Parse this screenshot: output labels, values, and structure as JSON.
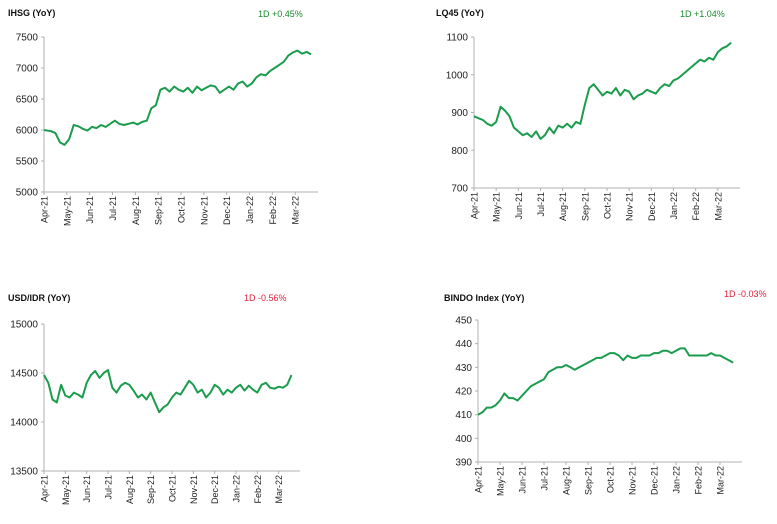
{
  "colors": {
    "line": "#1a9c4c",
    "axis": "#b0b0b0",
    "up": "#1a8a2e",
    "down": "#e0203a"
  },
  "chart_data": [
    {
      "id": "ihsg",
      "type": "line",
      "title": "IHSG (YoY)",
      "change_label": "1D +0.45%",
      "change_direction": "up",
      "ylim": [
        5000,
        7500
      ],
      "yticks": [
        "5000",
        "5500",
        "6000",
        "6500",
        "7000",
        "7500"
      ],
      "xticks": [
        "Apr-21",
        "May-21",
        "Jun-21",
        "Jul-21",
        "Aug-21",
        "Sep-21",
        "Oct-21",
        "Nov-21",
        "Dec-21",
        "Jan-22",
        "Feb-22",
        "Mar-22"
      ],
      "grid": false,
      "legend": "none",
      "series": [
        {
          "x": [
            0,
            0.3,
            0.5,
            0.7,
            0.9,
            1.1,
            1.3,
            1.5,
            1.7,
            1.9,
            2.1,
            2.3,
            2.5,
            2.7,
            2.9,
            3.1,
            3.3,
            3.5,
            3.7,
            3.9,
            4.1,
            4.3,
            4.5,
            4.7,
            4.9,
            5.1,
            5.3,
            5.5,
            5.7,
            5.9,
            6.1,
            6.3,
            6.5,
            6.7,
            6.9,
            7.1,
            7.3,
            7.5,
            7.7,
            7.9,
            8.1,
            8.3,
            8.5,
            8.7,
            8.9,
            9.1,
            9.3,
            9.5,
            9.7,
            9.9,
            10.1,
            10.3,
            10.5,
            10.7,
            10.9,
            11.1,
            11.3,
            11.5,
            11.7
          ],
          "values": [
            6000,
            5980,
            5950,
            5800,
            5760,
            5850,
            6080,
            6060,
            6020,
            5990,
            6050,
            6030,
            6080,
            6050,
            6100,
            6150,
            6100,
            6080,
            6100,
            6120,
            6090,
            6130,
            6150,
            6350,
            6400,
            6650,
            6680,
            6620,
            6700,
            6650,
            6620,
            6680,
            6600,
            6700,
            6640,
            6680,
            6720,
            6700,
            6600,
            6650,
            6700,
            6650,
            6750,
            6780,
            6700,
            6750,
            6850,
            6900,
            6880,
            6950,
            7000,
            7050,
            7100,
            7200,
            7250,
            7280,
            7230,
            7260,
            7220
          ]
        }
      ]
    },
    {
      "id": "lq45",
      "type": "line",
      "title": "LQ45 (YoY)",
      "change_label": "1D +1.04%",
      "change_direction": "up",
      "ylim": [
        700,
        1100
      ],
      "yticks": [
        "700",
        "800",
        "900",
        "1000",
        "1100"
      ],
      "xticks": [
        "Apr-21",
        "May-21",
        "Jun-21",
        "Jul-21",
        "Aug-21",
        "Sep-21",
        "Oct-21",
        "Nov-21",
        "Dec-21",
        "Jan-22",
        "Feb-22",
        "Mar-22"
      ],
      "grid": false,
      "legend": "none",
      "series": [
        {
          "x": [
            0,
            0.2,
            0.4,
            0.6,
            0.8,
            1.0,
            1.2,
            1.4,
            1.6,
            1.8,
            2.0,
            2.2,
            2.4,
            2.6,
            2.8,
            3.0,
            3.2,
            3.4,
            3.6,
            3.8,
            4.0,
            4.2,
            4.4,
            4.6,
            4.8,
            5.0,
            5.2,
            5.4,
            5.6,
            5.8,
            6.0,
            6.2,
            6.4,
            6.6,
            6.8,
            7.0,
            7.2,
            7.4,
            7.6,
            7.8,
            8.0,
            8.2,
            8.4,
            8.6,
            8.8,
            9.0,
            9.2,
            9.4,
            9.6,
            9.8,
            10.0,
            10.2,
            10.4,
            10.6,
            10.8,
            11.0,
            11.2,
            11.4,
            11.6
          ],
          "values": [
            890,
            885,
            880,
            870,
            865,
            875,
            915,
            905,
            890,
            860,
            850,
            840,
            845,
            835,
            850,
            830,
            840,
            860,
            845,
            865,
            860,
            870,
            860,
            875,
            870,
            920,
            965,
            975,
            960,
            945,
            955,
            950,
            965,
            945,
            960,
            955,
            935,
            945,
            950,
            960,
            955,
            950,
            965,
            975,
            970,
            985,
            990,
            1000,
            1010,
            1020,
            1030,
            1040,
            1035,
            1045,
            1040,
            1060,
            1070,
            1075,
            1085
          ]
        }
      ]
    },
    {
      "id": "usdidr",
      "type": "line",
      "title": "USD/IDR (YoY)",
      "change_label": "1D -0.56%",
      "change_direction": "down",
      "ylim": [
        13500,
        15000
      ],
      "yticks": [
        "13500",
        "14000",
        "14500",
        "15000"
      ],
      "xticks": [
        "Apr-21",
        "May-21",
        "Jun-21",
        "Jul-21",
        "Aug-21",
        "Sep-21",
        "Oct-21",
        "Nov-21",
        "Dec-21",
        "Jan-22",
        "Feb-22",
        "Mar-22"
      ],
      "grid": false,
      "legend": "none",
      "series": [
        {
          "x": [
            0,
            0.2,
            0.4,
            0.6,
            0.8,
            1.0,
            1.2,
            1.4,
            1.6,
            1.8,
            2.0,
            2.2,
            2.4,
            2.6,
            2.8,
            3.0,
            3.2,
            3.4,
            3.6,
            3.8,
            4.0,
            4.2,
            4.4,
            4.6,
            4.8,
            5.0,
            5.2,
            5.4,
            5.6,
            5.8,
            6.0,
            6.2,
            6.4,
            6.6,
            6.8,
            7.0,
            7.2,
            7.4,
            7.6,
            7.8,
            8.0,
            8.2,
            8.4,
            8.6,
            8.8,
            9.0,
            9.2,
            9.4,
            9.6,
            9.8,
            10.0,
            10.2,
            10.4,
            10.6,
            10.8,
            11.0,
            11.2,
            11.4,
            11.6
          ],
          "values": [
            14480,
            14400,
            14230,
            14200,
            14380,
            14270,
            14250,
            14300,
            14280,
            14250,
            14400,
            14480,
            14520,
            14450,
            14500,
            14530,
            14350,
            14300,
            14370,
            14400,
            14380,
            14320,
            14250,
            14280,
            14230,
            14300,
            14200,
            14100,
            14150,
            14180,
            14250,
            14300,
            14280,
            14350,
            14420,
            14380,
            14300,
            14330,
            14250,
            14300,
            14380,
            14350,
            14280,
            14330,
            14300,
            14350,
            14380,
            14320,
            14370,
            14330,
            14300,
            14380,
            14400,
            14350,
            14340,
            14360,
            14350,
            14380,
            14480
          ]
        }
      ]
    },
    {
      "id": "bindo",
      "type": "line",
      "title": "BINDO Index (YoY)",
      "change_label": "1D -0.03%",
      "change_direction": "down",
      "ylim": [
        390,
        450
      ],
      "yticks": [
        "390",
        "400",
        "410",
        "420",
        "430",
        "440",
        "450"
      ],
      "xticks": [
        "Apr-21",
        "May-21",
        "Jun-21",
        "Jul-21",
        "Aug-21",
        "Sep-21",
        "Oct-21",
        "Nov-21",
        "Dec-21",
        "Jan-22",
        "Feb-22",
        "Mar-22"
      ],
      "grid": false,
      "legend": "none",
      "series": [
        {
          "x": [
            0,
            0.2,
            0.4,
            0.6,
            0.8,
            1.0,
            1.2,
            1.4,
            1.6,
            1.8,
            2.0,
            2.2,
            2.4,
            2.6,
            2.8,
            3.0,
            3.2,
            3.4,
            3.6,
            3.8,
            4.0,
            4.2,
            4.4,
            4.6,
            4.8,
            5.0,
            5.2,
            5.4,
            5.6,
            5.8,
            6.0,
            6.2,
            6.4,
            6.6,
            6.8,
            7.0,
            7.2,
            7.4,
            7.6,
            7.8,
            8.0,
            8.2,
            8.4,
            8.6,
            8.8,
            9.0,
            9.2,
            9.4,
            9.6,
            9.8,
            10.0,
            10.2,
            10.4,
            10.6,
            10.8,
            11.0,
            11.2,
            11.4,
            11.6
          ],
          "values": [
            410,
            411,
            413,
            413,
            414,
            416,
            419,
            417,
            417,
            416,
            418,
            420,
            422,
            423,
            424,
            425,
            428,
            429,
            430,
            430,
            431,
            430,
            429,
            430,
            431,
            432,
            433,
            434,
            434,
            435,
            436,
            436,
            435,
            433,
            435,
            434,
            434,
            435,
            435,
            435,
            436,
            436,
            437,
            437,
            436,
            437,
            438,
            438,
            435,
            435,
            435,
            435,
            435,
            436,
            435,
            435,
            434,
            433,
            432
          ]
        }
      ]
    }
  ]
}
